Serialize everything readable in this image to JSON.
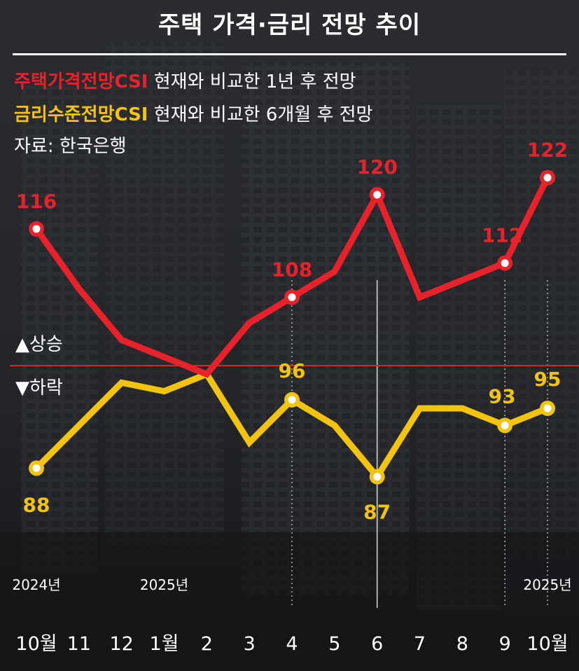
{
  "title": "주택 가격·금리 전망 추이",
  "legend": [
    {
      "name": "주택가격전망CSI",
      "desc": "현재와 비교한 1년 후 전망",
      "color": "#e8222b"
    },
    {
      "name": "금리수준전망CSI",
      "desc": "현재와 비교한 6개월 후 전망",
      "color": "#f2c40f"
    }
  ],
  "source": "자료: 한국은행",
  "annotations": {
    "up": "▲상승",
    "down": "▼하락"
  },
  "year_labels": [
    "2024년",
    "2025년",
    "2025년"
  ],
  "chart_data": {
    "type": "line",
    "x": [
      "10월",
      "11",
      "12",
      "1월",
      "2",
      "3",
      "4",
      "5",
      "6",
      "7",
      "8",
      "9",
      "10월"
    ],
    "series": [
      {
        "name": "주택가격전망CSI",
        "color": "#e8222b",
        "values": [
          116,
          109,
          103,
          101,
          99,
          105,
          108,
          111,
          120,
          108,
          110,
          112,
          122
        ]
      },
      {
        "name": "금리수준전망CSI",
        "color": "#f2c40f",
        "values": [
          88,
          93,
          98,
          97,
          99,
          91,
          96,
          93,
          87,
          95,
          95,
          93,
          95
        ]
      }
    ],
    "labeled_points": {
      "주택가격전망CSI": [
        [
          0,
          "116"
        ],
        [
          6,
          "108"
        ],
        [
          8,
          "120"
        ],
        [
          11,
          "112"
        ],
        [
          12,
          "122"
        ]
      ],
      "금리수준전망CSI": [
        [
          0,
          "88"
        ],
        [
          6,
          "96"
        ],
        [
          8,
          "87"
        ],
        [
          11,
          "93"
        ],
        [
          12,
          "95"
        ]
      ]
    },
    "reference_line": 100,
    "ylim": [
      80,
      125
    ]
  }
}
